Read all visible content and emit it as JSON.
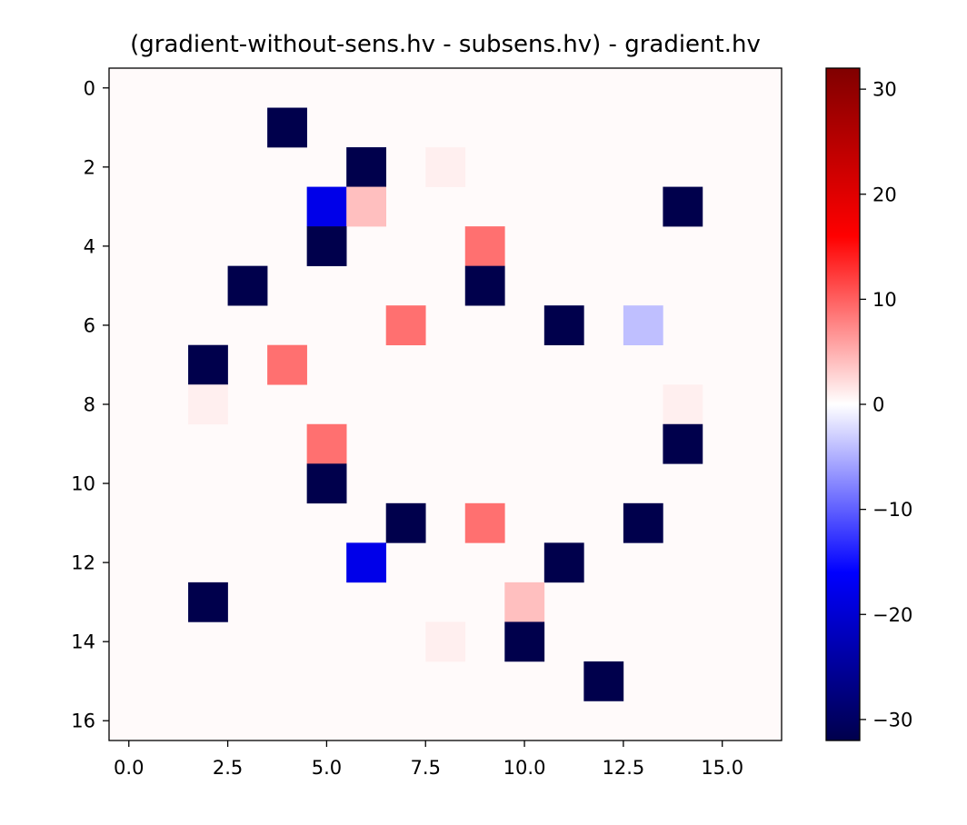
{
  "chart_data": {
    "type": "heatmap",
    "title": "(gradient-without-sens.hv - subsens.hv) - gradient.hv",
    "xlabel": "",
    "ylabel": "",
    "xlim": [
      -0.5,
      16.5
    ],
    "ylim": [
      16.5,
      -0.5
    ],
    "grid": false,
    "x_ticks": [
      {
        "value": 0,
        "label": "0.0"
      },
      {
        "value": 2.5,
        "label": "2.5"
      },
      {
        "value": 5,
        "label": "5.0"
      },
      {
        "value": 7.5,
        "label": "7.5"
      },
      {
        "value": 10,
        "label": "10.0"
      },
      {
        "value": 12.5,
        "label": "12.5"
      },
      {
        "value": 15,
        "label": "15.0"
      }
    ],
    "y_ticks": [
      {
        "value": 0,
        "label": "0"
      },
      {
        "value": 2,
        "label": "2"
      },
      {
        "value": 4,
        "label": "4"
      },
      {
        "value": 6,
        "label": "6"
      },
      {
        "value": 8,
        "label": "8"
      },
      {
        "value": 10,
        "label": "10"
      },
      {
        "value": 12,
        "label": "12"
      },
      {
        "value": 14,
        "label": "14"
      },
      {
        "value": 16,
        "label": "16"
      }
    ],
    "background_value": 0.3,
    "cells": [
      {
        "row": 1,
        "col": 4,
        "value": -32
      },
      {
        "row": 2,
        "col": 6,
        "value": -32
      },
      {
        "row": 2,
        "col": 8,
        "value": 1
      },
      {
        "row": 3,
        "col": 5,
        "value": -18
      },
      {
        "row": 3,
        "col": 6,
        "value": 4
      },
      {
        "row": 3,
        "col": 14,
        "value": -32
      },
      {
        "row": 4,
        "col": 5,
        "value": -32
      },
      {
        "row": 4,
        "col": 9,
        "value": 9
      },
      {
        "row": 5,
        "col": 3,
        "value": -32
      },
      {
        "row": 5,
        "col": 9,
        "value": -32
      },
      {
        "row": 6,
        "col": 7,
        "value": 9
      },
      {
        "row": 6,
        "col": 11,
        "value": -32
      },
      {
        "row": 6,
        "col": 13,
        "value": -4
      },
      {
        "row": 7,
        "col": 2,
        "value": -32
      },
      {
        "row": 7,
        "col": 4,
        "value": 9
      },
      {
        "row": 8,
        "col": 2,
        "value": 1
      },
      {
        "row": 8,
        "col": 14,
        "value": 1
      },
      {
        "row": 9,
        "col": 5,
        "value": 9
      },
      {
        "row": 9,
        "col": 14,
        "value": -32
      },
      {
        "row": 10,
        "col": 5,
        "value": -32
      },
      {
        "row": 11,
        "col": 7,
        "value": -32
      },
      {
        "row": 11,
        "col": 9,
        "value": 9
      },
      {
        "row": 11,
        "col": 13,
        "value": -32
      },
      {
        "row": 12,
        "col": 6,
        "value": -18
      },
      {
        "row": 12,
        "col": 11,
        "value": -32
      },
      {
        "row": 13,
        "col": 2,
        "value": -32
      },
      {
        "row": 13,
        "col": 10,
        "value": 4
      },
      {
        "row": 14,
        "col": 8,
        "value": 1
      },
      {
        "row": 14,
        "col": 10,
        "value": -32
      },
      {
        "row": 15,
        "col": 12,
        "value": -32
      }
    ],
    "colorbar": {
      "colormap": "seismic",
      "vmin": -32,
      "vmax": 32,
      "ticks": [
        {
          "value": 30,
          "label": "30"
        },
        {
          "value": 20,
          "label": "20"
        },
        {
          "value": 10,
          "label": "10"
        },
        {
          "value": 0,
          "label": "0"
        },
        {
          "value": -10,
          "label": "−10"
        },
        {
          "value": -20,
          "label": "−20"
        },
        {
          "value": -30,
          "label": "−30"
        }
      ]
    }
  }
}
